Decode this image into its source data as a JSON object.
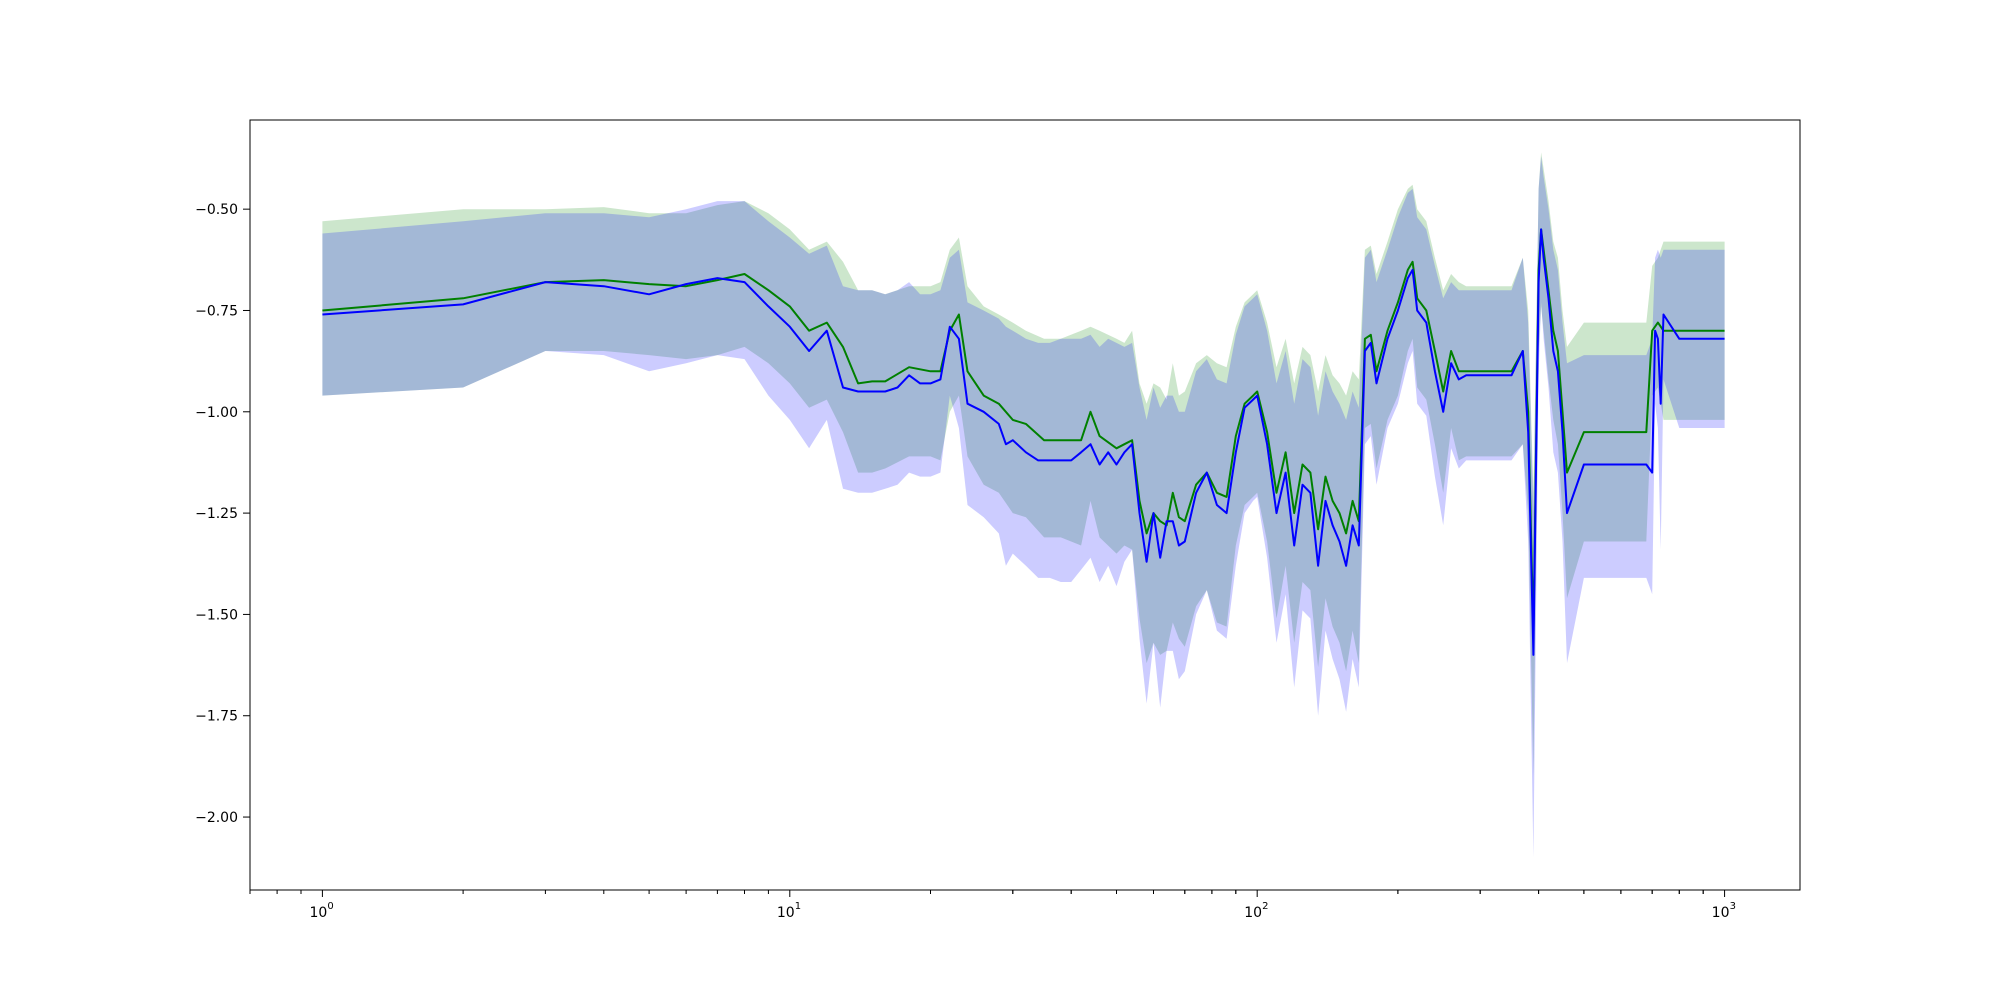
{
  "chart_data": {
    "type": "line",
    "title": "",
    "xlabel": "",
    "ylabel": "",
    "xscale": "log",
    "xlim": [
      0.7,
      1450
    ],
    "ylim": [
      -2.18,
      -0.28
    ],
    "grid": false,
    "legend": "none",
    "x_ticks": [
      {
        "base": "10",
        "exp": "0",
        "value": 1
      },
      {
        "base": "10",
        "exp": "1",
        "value": 10
      },
      {
        "base": "10",
        "exp": "2",
        "value": 100
      },
      {
        "base": "10",
        "exp": "3",
        "value": 1000
      }
    ],
    "y_ticks": [
      {
        "label": "−0.50",
        "value": -0.5
      },
      {
        "label": "−0.75",
        "value": -0.75
      },
      {
        "label": "−1.00",
        "value": -1.0
      },
      {
        "label": "−1.25",
        "value": -1.25
      },
      {
        "label": "−1.50",
        "value": -1.5
      },
      {
        "label": "−1.75",
        "value": -1.75
      },
      {
        "label": "−2.00",
        "value": -2.0
      }
    ],
    "series": [
      {
        "color": "#008000",
        "band_color": "#008000",
        "x": [
          1,
          2,
          3,
          4,
          5,
          6,
          7,
          8,
          9,
          10,
          11,
          12,
          13,
          14,
          15,
          16,
          18,
          20,
          21,
          22,
          23,
          24,
          26,
          28,
          30,
          32,
          35,
          38,
          42,
          44,
          46,
          50,
          52,
          54,
          56,
          58,
          60,
          62,
          64,
          66,
          68,
          70,
          74,
          78,
          82,
          86,
          90,
          94,
          98,
          100,
          105,
          110,
          115,
          120,
          125,
          130,
          135,
          140,
          145,
          150,
          155,
          160,
          165,
          170,
          175,
          180,
          190,
          200,
          210,
          215,
          220,
          230,
          240,
          250,
          260,
          270,
          280,
          300,
          350,
          370,
          380,
          390,
          400,
          405,
          410,
          420,
          430,
          440,
          450,
          460,
          500,
          550,
          600,
          680,
          700,
          720,
          740,
          800,
          1000
        ],
        "y": [
          -0.75,
          -0.72,
          -0.68,
          -0.675,
          -0.685,
          -0.69,
          -0.675,
          -0.66,
          -0.7,
          -0.74,
          -0.8,
          -0.78,
          -0.84,
          -0.93,
          -0.925,
          -0.925,
          -0.89,
          -0.9,
          -0.9,
          -0.8,
          -0.76,
          -0.9,
          -0.96,
          -0.98,
          -1.02,
          -1.03,
          -1.07,
          -1.07,
          -1.07,
          -1.0,
          -1.06,
          -1.09,
          -1.08,
          -1.07,
          -1.22,
          -1.3,
          -1.25,
          -1.27,
          -1.28,
          -1.2,
          -1.26,
          -1.27,
          -1.18,
          -1.15,
          -1.2,
          -1.21,
          -1.06,
          -0.98,
          -0.96,
          -0.95,
          -1.05,
          -1.2,
          -1.1,
          -1.25,
          -1.13,
          -1.15,
          -1.29,
          -1.16,
          -1.22,
          -1.25,
          -1.3,
          -1.22,
          -1.27,
          -0.82,
          -0.81,
          -0.9,
          -0.8,
          -0.73,
          -0.65,
          -0.63,
          -0.72,
          -0.75,
          -0.85,
          -0.95,
          -0.85,
          -0.9,
          -0.9,
          -0.9,
          -0.9,
          -0.85,
          -1.0,
          -1.55,
          -0.65,
          -0.55,
          -0.6,
          -0.7,
          -0.8,
          -0.85,
          -1.0,
          -1.15,
          -1.05,
          -1.05,
          -1.05,
          -1.05,
          -0.8,
          -0.78,
          -0.8,
          -0.8,
          -0.8
        ],
        "upper": [
          -0.53,
          -0.5,
          -0.5,
          -0.495,
          -0.51,
          -0.51,
          -0.49,
          -0.48,
          -0.51,
          -0.55,
          -0.6,
          -0.58,
          -0.63,
          -0.7,
          -0.7,
          -0.71,
          -0.69,
          -0.69,
          -0.68,
          -0.6,
          -0.57,
          -0.69,
          -0.74,
          -0.76,
          -0.78,
          -0.8,
          -0.82,
          -0.82,
          -0.8,
          -0.79,
          -0.8,
          -0.82,
          -0.83,
          -0.8,
          -0.93,
          -0.98,
          -0.93,
          -0.94,
          -0.97,
          -0.88,
          -0.96,
          -0.95,
          -0.88,
          -0.86,
          -0.88,
          -0.89,
          -0.79,
          -0.73,
          -0.71,
          -0.7,
          -0.78,
          -0.89,
          -0.82,
          -0.93,
          -0.84,
          -0.86,
          -0.95,
          -0.86,
          -0.91,
          -0.93,
          -0.96,
          -0.9,
          -0.92,
          -0.6,
          -0.59,
          -0.66,
          -0.58,
          -0.5,
          -0.45,
          -0.44,
          -0.5,
          -0.53,
          -0.62,
          -0.7,
          -0.66,
          -0.68,
          -0.69,
          -0.69,
          -0.69,
          -0.62,
          -0.75,
          -1.2,
          -0.45,
          -0.36,
          -0.4,
          -0.48,
          -0.58,
          -0.62,
          -0.75,
          -0.84,
          -0.78,
          -0.78,
          -0.78,
          -0.78,
          -0.64,
          -0.62,
          -0.58,
          -0.58,
          -0.58
        ],
        "lower": [
          -0.96,
          -0.94,
          -0.85,
          -0.85,
          -0.86,
          -0.87,
          -0.86,
          -0.84,
          -0.88,
          -0.93,
          -0.99,
          -0.97,
          -1.05,
          -1.15,
          -1.15,
          -1.14,
          -1.11,
          -1.11,
          -1.12,
          -1.0,
          -0.96,
          -1.11,
          -1.18,
          -1.2,
          -1.25,
          -1.26,
          -1.31,
          -1.31,
          -1.33,
          -1.22,
          -1.31,
          -1.35,
          -1.33,
          -1.34,
          -1.51,
          -1.62,
          -1.57,
          -1.6,
          -1.59,
          -1.52,
          -1.56,
          -1.58,
          -1.48,
          -1.44,
          -1.52,
          -1.53,
          -1.33,
          -1.23,
          -1.21,
          -1.2,
          -1.32,
          -1.51,
          -1.38,
          -1.57,
          -1.42,
          -1.44,
          -1.63,
          -1.46,
          -1.53,
          -1.57,
          -1.64,
          -1.54,
          -1.62,
          -1.04,
          -1.03,
          -1.14,
          -1.02,
          -0.96,
          -0.85,
          -0.82,
          -0.94,
          -0.97,
          -1.08,
          -1.2,
          -1.04,
          -1.12,
          -1.11,
          -1.11,
          -1.11,
          -1.08,
          -1.25,
          -1.9,
          -0.85,
          -0.74,
          -0.8,
          -0.92,
          -1.02,
          -1.08,
          -1.25,
          -1.46,
          -1.32,
          -1.32,
          -1.32,
          -1.32,
          -0.96,
          -0.94,
          -1.02,
          -1.02,
          -1.02
        ]
      },
      {
        "color": "#0000ff",
        "band_color": "#0000ff",
        "x": [
          1,
          2,
          3,
          4,
          5,
          6,
          7,
          8,
          9,
          10,
          11,
          12,
          13,
          14,
          15,
          16,
          17,
          18,
          19,
          20,
          21,
          22,
          23,
          24,
          26,
          28,
          29,
          30,
          32,
          34,
          36,
          38,
          40,
          42,
          44,
          46,
          48,
          50,
          52,
          54,
          56,
          58,
          60,
          62,
          64,
          66,
          68,
          70,
          74,
          78,
          82,
          86,
          90,
          94,
          98,
          100,
          105,
          110,
          115,
          120,
          125,
          130,
          135,
          140,
          145,
          150,
          155,
          160,
          165,
          170,
          175,
          180,
          190,
          200,
          210,
          215,
          220,
          230,
          240,
          250,
          260,
          270,
          280,
          300,
          350,
          370,
          380,
          390,
          400,
          405,
          410,
          420,
          430,
          440,
          450,
          460,
          500,
          550,
          600,
          680,
          700,
          710,
          720,
          730,
          740,
          800,
          1000
        ],
        "y": [
          -0.76,
          -0.735,
          -0.68,
          -0.69,
          -0.71,
          -0.685,
          -0.67,
          -0.68,
          -0.74,
          -0.79,
          -0.85,
          -0.8,
          -0.94,
          -0.95,
          -0.95,
          -0.95,
          -0.94,
          -0.91,
          -0.93,
          -0.93,
          -0.92,
          -0.79,
          -0.82,
          -0.98,
          -1.0,
          -1.03,
          -1.08,
          -1.07,
          -1.1,
          -1.12,
          -1.12,
          -1.12,
          -1.12,
          -1.1,
          -1.08,
          -1.13,
          -1.1,
          -1.13,
          -1.1,
          -1.08,
          -1.25,
          -1.37,
          -1.25,
          -1.36,
          -1.27,
          -1.27,
          -1.33,
          -1.32,
          -1.2,
          -1.15,
          -1.23,
          -1.25,
          -1.1,
          -0.99,
          -0.97,
          -0.96,
          -1.08,
          -1.25,
          -1.15,
          -1.33,
          -1.18,
          -1.2,
          -1.38,
          -1.22,
          -1.28,
          -1.32,
          -1.38,
          -1.28,
          -1.33,
          -0.85,
          -0.83,
          -0.93,
          -0.82,
          -0.75,
          -0.67,
          -0.65,
          -0.75,
          -0.78,
          -0.9,
          -1.0,
          -0.88,
          -0.92,
          -0.91,
          -0.91,
          -0.91,
          -0.85,
          -1.05,
          -1.6,
          -0.68,
          -0.55,
          -0.62,
          -0.72,
          -0.85,
          -0.9,
          -1.05,
          -1.25,
          -1.13,
          -1.13,
          -1.13,
          -1.13,
          -1.15,
          -0.8,
          -0.82,
          -0.98,
          -0.76,
          -0.82,
          -0.82
        ],
        "upper": [
          -0.56,
          -0.53,
          -0.51,
          -0.51,
          -0.52,
          -0.5,
          -0.48,
          -0.48,
          -0.53,
          -0.57,
          -0.61,
          -0.59,
          -0.69,
          -0.7,
          -0.7,
          -0.71,
          -0.7,
          -0.68,
          -0.71,
          -0.71,
          -0.7,
          -0.62,
          -0.6,
          -0.73,
          -0.75,
          -0.77,
          -0.79,
          -0.8,
          -0.82,
          -0.83,
          -0.83,
          -0.82,
          -0.82,
          -0.82,
          -0.81,
          -0.84,
          -0.82,
          -0.83,
          -0.84,
          -0.83,
          -0.94,
          -1.02,
          -0.94,
          -0.99,
          -0.96,
          -0.96,
          -1.0,
          -1.0,
          -0.9,
          -0.87,
          -0.92,
          -0.93,
          -0.81,
          -0.74,
          -0.72,
          -0.71,
          -0.8,
          -0.93,
          -0.85,
          -0.98,
          -0.87,
          -0.89,
          -1.01,
          -0.9,
          -0.95,
          -0.98,
          -1.02,
          -0.95,
          -0.99,
          -0.62,
          -0.6,
          -0.68,
          -0.6,
          -0.52,
          -0.46,
          -0.45,
          -0.52,
          -0.55,
          -0.64,
          -0.72,
          -0.68,
          -0.7,
          -0.7,
          -0.7,
          -0.7,
          -0.62,
          -0.78,
          -1.25,
          -0.45,
          -0.37,
          -0.42,
          -0.5,
          -0.6,
          -0.65,
          -0.78,
          -0.88,
          -0.86,
          -0.86,
          -0.86,
          -0.86,
          -0.82,
          -0.62,
          -0.6,
          -0.62,
          -0.6,
          -0.6,
          -0.6
        ],
        "lower": [
          -0.96,
          -0.94,
          -0.85,
          -0.86,
          -0.9,
          -0.88,
          -0.86,
          -0.87,
          -0.96,
          -1.02,
          -1.09,
          -1.02,
          -1.19,
          -1.2,
          -1.2,
          -1.19,
          -1.18,
          -1.15,
          -1.16,
          -1.16,
          -1.15,
          -0.96,
          -1.04,
          -1.23,
          -1.26,
          -1.3,
          -1.38,
          -1.35,
          -1.38,
          -1.41,
          -1.41,
          -1.42,
          -1.42,
          -1.39,
          -1.36,
          -1.42,
          -1.38,
          -1.43,
          -1.37,
          -1.34,
          -1.56,
          -1.72,
          -1.57,
          -1.73,
          -1.59,
          -1.59,
          -1.66,
          -1.64,
          -1.5,
          -1.44,
          -1.54,
          -1.56,
          -1.38,
          -1.25,
          -1.22,
          -1.21,
          -1.36,
          -1.57,
          -1.45,
          -1.68,
          -1.49,
          -1.51,
          -1.75,
          -1.54,
          -1.61,
          -1.66,
          -1.74,
          -1.61,
          -1.68,
          -1.08,
          -1.06,
          -1.18,
          -1.04,
          -0.98,
          -0.88,
          -0.85,
          -0.98,
          -1.01,
          -1.16,
          -1.28,
          -1.09,
          -1.14,
          -1.12,
          -1.12,
          -1.12,
          -1.08,
          -1.32,
          -2.1,
          -0.91,
          -0.73,
          -0.82,
          -0.94,
          -1.1,
          -1.15,
          -1.32,
          -1.62,
          -1.41,
          -1.41,
          -1.41,
          -1.41,
          -1.45,
          -0.98,
          -1.04,
          -1.34,
          -0.92,
          -1.04,
          -1.04
        ]
      }
    ]
  }
}
